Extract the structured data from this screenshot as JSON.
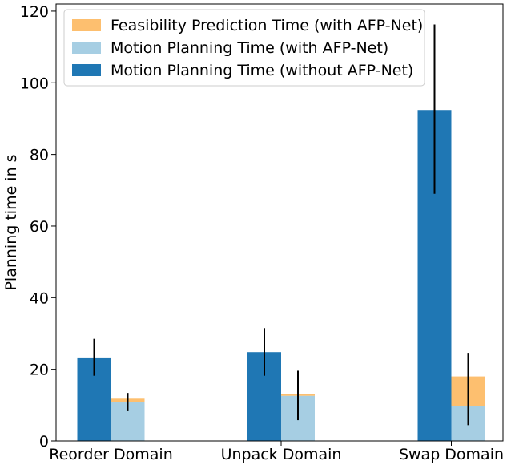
{
  "chart_data": {
    "type": "bar",
    "title": "",
    "xlabel": "",
    "ylabel": "Planning time in s",
    "ylim": [
      0,
      122
    ],
    "yticks": [
      0,
      20,
      40,
      60,
      80,
      100,
      120
    ],
    "categories": [
      "Reorder Domain",
      "Unpack Domain",
      "Swap Domain"
    ],
    "grid": false,
    "legend_position": "top-left",
    "series": [
      {
        "name": "Motion Planning Time (without AFP-Net)",
        "color": "#1f77b4",
        "group": "without",
        "values": [
          23.3,
          24.8,
          92.4
        ],
        "err_low": [
          18.2,
          18.2,
          69.0
        ],
        "err_high": [
          28.5,
          31.5,
          116.3
        ]
      },
      {
        "name": "Motion Planning Time (with AFP-Net)",
        "color": "#a6cee3",
        "group": "with",
        "values": [
          10.8,
          12.6,
          9.8
        ]
      },
      {
        "name": "Feasibility Prediction Time (with AFP-Net)",
        "color": "#fdbf6f",
        "group": "with",
        "stacked_on": "Motion Planning Time (with AFP-Net)",
        "values": [
          1.0,
          0.5,
          8.2
        ]
      }
    ],
    "with_total_error": {
      "err_low": [
        8.3,
        5.8,
        4.4
      ],
      "err_high": [
        13.4,
        19.6,
        24.6
      ]
    },
    "legend_order": [
      "Feasibility Prediction Time (with AFP-Net)",
      "Motion Planning Time (with AFP-Net)",
      "Motion Planning Time (without AFP-Net)"
    ]
  }
}
